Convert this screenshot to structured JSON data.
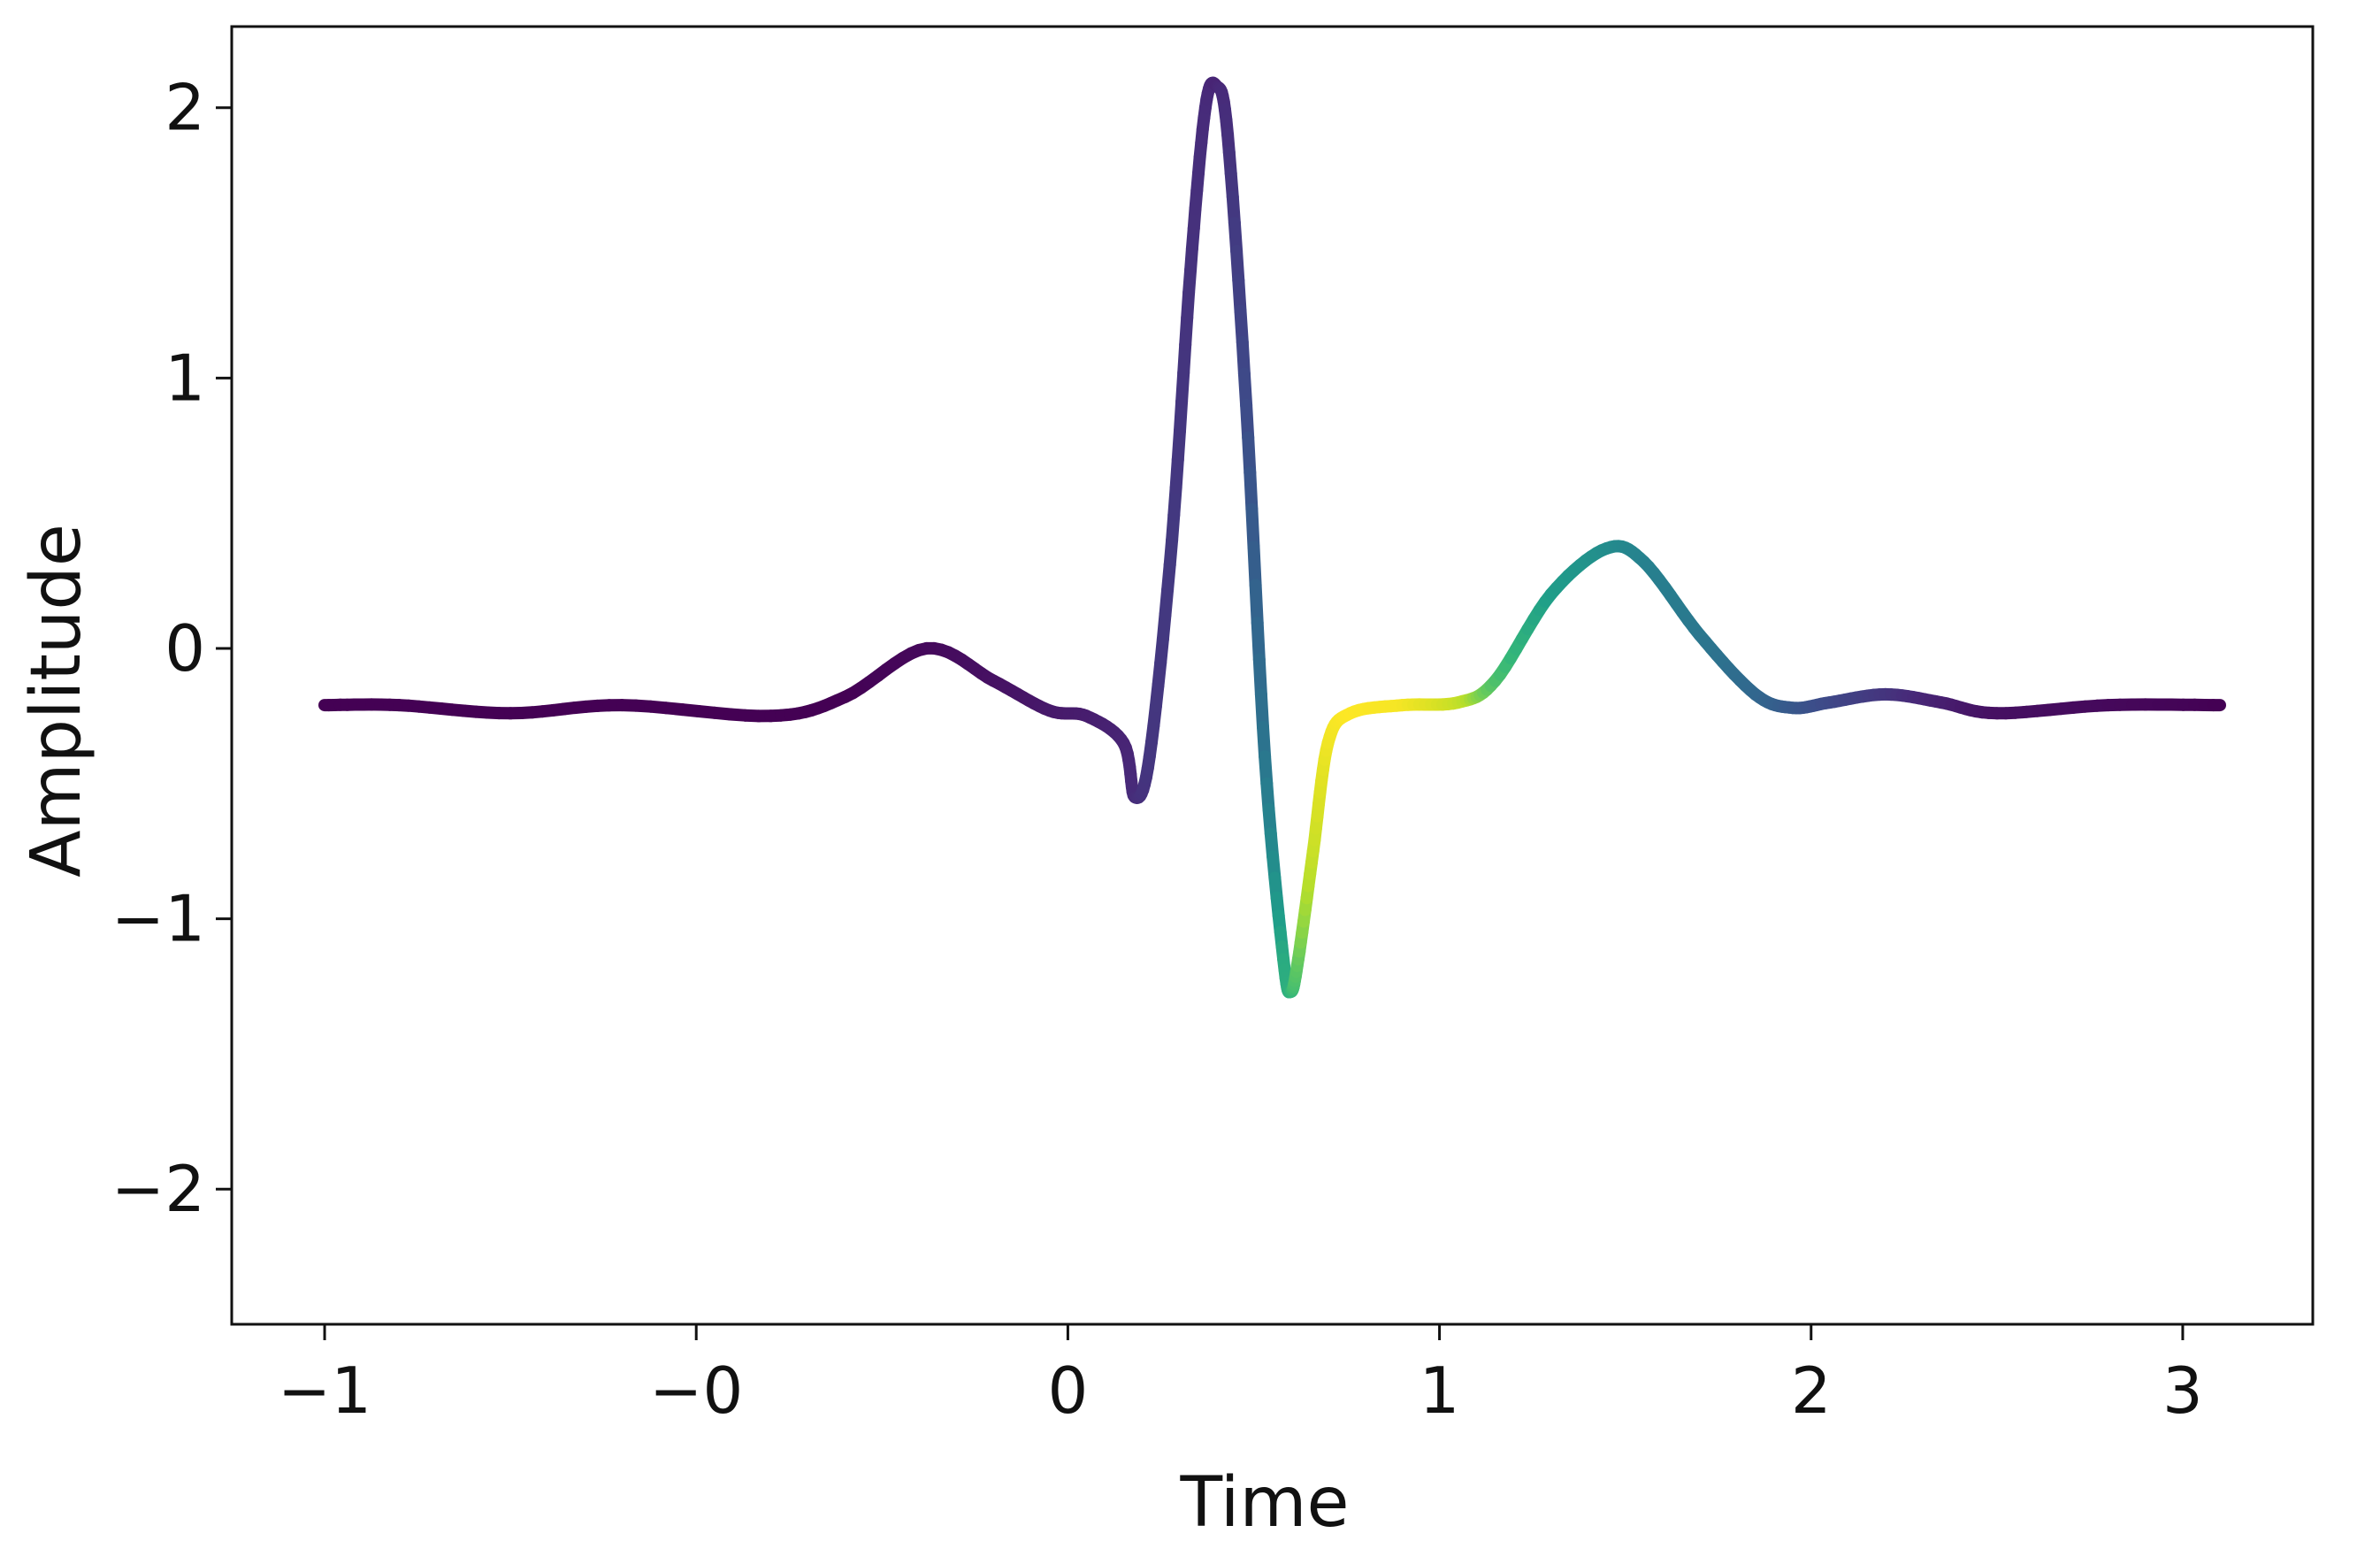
{
  "chart_data": {
    "type": "line",
    "title": "",
    "xlabel": "Time",
    "ylabel": "Amplitude",
    "xlim": [
      -1.25,
      3.35
    ],
    "ylim": [
      -2.5,
      2.3
    ],
    "x_ticks": [
      {
        "value": -1,
        "label": "−1"
      },
      {
        "value": 0,
        "label": "−0"
      },
      {
        "value": 1,
        "label": "0"
      },
      {
        "value": 2,
        "label": "1"
      },
      {
        "value": 3,
        "label": "2"
      },
      {
        "value": 4,
        "label": "3"
      }
    ],
    "y_ticks": [
      {
        "value": 2,
        "label": "2"
      },
      {
        "value": 1,
        "label": "1"
      },
      {
        "value": 0,
        "label": "0"
      },
      {
        "value": -1,
        "label": "−1"
      },
      {
        "value": -2,
        "label": "−2"
      }
    ],
    "grid": false,
    "colormap": "viridis",
    "series": [
      {
        "points": [
          [
            -1.0,
            -0.21
          ],
          [
            -0.8,
            -0.21
          ],
          [
            -0.5,
            -0.24
          ],
          [
            -0.2,
            -0.21
          ],
          [
            0.2,
            -0.25
          ],
          [
            0.4,
            -0.18
          ],
          [
            0.62,
            0.0
          ],
          [
            0.8,
            -0.12
          ],
          [
            0.95,
            -0.23
          ],
          [
            1.05,
            -0.25
          ],
          [
            1.15,
            -0.35
          ],
          [
            1.18,
            -0.55
          ],
          [
            1.22,
            -0.4
          ],
          [
            1.28,
            0.4
          ],
          [
            1.33,
            1.4
          ],
          [
            1.37,
            2.0
          ],
          [
            1.4,
            2.08
          ],
          [
            1.43,
            1.9
          ],
          [
            1.48,
            0.9
          ],
          [
            1.53,
            -0.4
          ],
          [
            1.58,
            -1.15
          ],
          [
            1.6,
            -1.27
          ],
          [
            1.62,
            -1.15
          ],
          [
            1.66,
            -0.75
          ],
          [
            1.7,
            -0.35
          ],
          [
            1.76,
            -0.24
          ],
          [
            1.9,
            -0.21
          ],
          [
            2.05,
            -0.2
          ],
          [
            2.15,
            -0.12
          ],
          [
            2.3,
            0.2
          ],
          [
            2.45,
            0.37
          ],
          [
            2.55,
            0.32
          ],
          [
            2.7,
            0.05
          ],
          [
            2.85,
            -0.17
          ],
          [
            2.95,
            -0.22
          ],
          [
            3.05,
            -0.2
          ],
          [
            3.2,
            -0.17
          ],
          [
            3.35,
            -0.2
          ],
          [
            3.5,
            -0.24
          ],
          [
            3.8,
            -0.21
          ],
          [
            4.1,
            -0.21
          ]
        ],
        "color_values": [
          0.0,
          0.0,
          0.0,
          0.0,
          0.0,
          0.0,
          0.02,
          0.04,
          0.06,
          0.07,
          0.09,
          0.11,
          0.14,
          0.15,
          0.13,
          0.11,
          0.09,
          0.12,
          0.2,
          0.35,
          0.55,
          0.58,
          0.68,
          0.85,
          0.96,
          1.0,
          0.98,
          0.85,
          0.65,
          0.5,
          0.44,
          0.4,
          0.36,
          0.3,
          0.25,
          0.2,
          0.14,
          0.08,
          0.04,
          0.02,
          0.0
        ]
      }
    ]
  }
}
